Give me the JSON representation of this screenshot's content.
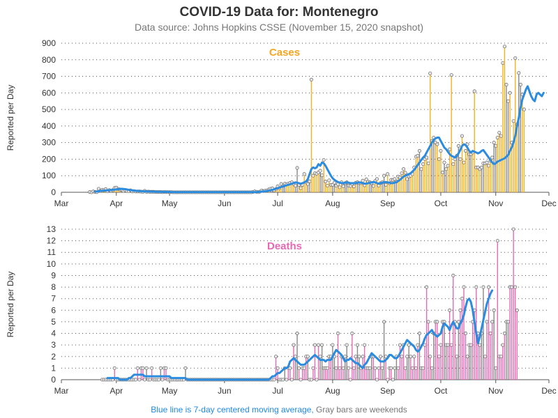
{
  "title": "COVID-19 Data for: Montenegro",
  "subtitle": "Data source: Johns Hopkins CSSE (November 15, 2020 snapshot)",
  "footnote": {
    "blue_text": "Blue line is 7-day centered moving average,",
    "gray_text": " Gray bars are weekends",
    "blue_color": "#1e88e5",
    "gray_color": "#777777"
  },
  "colors": {
    "cases_bar": "#f5b120",
    "deaths_bar": "#e56bb5",
    "weekend_bar": "#888888",
    "average_line": "#2b8cdf",
    "cases_label": "#f5a623",
    "deaths_label": "#e868b4"
  },
  "chart_data": [
    {
      "type": "bar",
      "panel": "cases",
      "label": "Cases",
      "ylabel": "Reported per Day",
      "ylim": [
        0,
        900
      ],
      "yticks": [
        0,
        100,
        200,
        300,
        400,
        500,
        600,
        700,
        800,
        900
      ],
      "xlim": [
        "2020-03-01",
        "2020-12-01"
      ],
      "xticks": [
        {
          "date": "2020-03-01",
          "label": "Mar"
        },
        {
          "date": "2020-04-01",
          "label": "Apr"
        },
        {
          "date": "2020-05-01",
          "label": "May"
        },
        {
          "date": "2020-06-01",
          "label": "Jun"
        },
        {
          "date": "2020-07-01",
          "label": "Jul"
        },
        {
          "date": "2020-08-01",
          "label": "Aug"
        },
        {
          "date": "2020-09-01",
          "label": "Sep"
        },
        {
          "date": "2020-10-01",
          "label": "Oct"
        },
        {
          "date": "2020-11-01",
          "label": "Nov"
        },
        {
          "date": "2020-12-01",
          "label": "Dec"
        }
      ],
      "grid": true,
      "series": [
        {
          "name": "Reported per Day",
          "start_date": "2020-03-17",
          "values": [
            2,
            0,
            5,
            2,
            1,
            21,
            8,
            14,
            13,
            19,
            6,
            13,
            9,
            13,
            26,
            28,
            20,
            17,
            14,
            8,
            12,
            8,
            7,
            12,
            5,
            7,
            5,
            5,
            5,
            4,
            3,
            8,
            3,
            4,
            3,
            3,
            3,
            2,
            2,
            2,
            2,
            1,
            2,
            1,
            1,
            1,
            1,
            0,
            0,
            0,
            0,
            0,
            0,
            0,
            0,
            0,
            0,
            0,
            0,
            0,
            0,
            0,
            0,
            0,
            0,
            0,
            0,
            0,
            0,
            0,
            0,
            0,
            0,
            0,
            0,
            0,
            0,
            0,
            0,
            0,
            0,
            0,
            0,
            0,
            0,
            0,
            0,
            0,
            0,
            0,
            0,
            0,
            2,
            5,
            3,
            1,
            4,
            11,
            7,
            10,
            11,
            17,
            21,
            24,
            11,
            19,
            36,
            25,
            50,
            38,
            52,
            48,
            52,
            56,
            60,
            50,
            40,
            147,
            44,
            25,
            45,
            110,
            60,
            50,
            66,
            680,
            100,
            115,
            112,
            120,
            130,
            103,
            195,
            65,
            40,
            72,
            45,
            45,
            58,
            40,
            49,
            30,
            60,
            37,
            55,
            60,
            40,
            38,
            50,
            35,
            57,
            60,
            55,
            55,
            70,
            42,
            78,
            63,
            60,
            55,
            38,
            68,
            80,
            40,
            55,
            60,
            100,
            45,
            110,
            55,
            75,
            75,
            80,
            65,
            95,
            90,
            115,
            140,
            118,
            80,
            95,
            100,
            110,
            150,
            215,
            220,
            250,
            140,
            170,
            200,
            210,
            175,
            718,
            310,
            330,
            300,
            290,
            200,
            250,
            120,
            180,
            140,
            160,
            260,
            708,
            170,
            200,
            220,
            280,
            200,
            340,
            180,
            250,
            290,
            230,
            230,
            240,
            610,
            150,
            150,
            140,
            150,
            175,
            175,
            180,
            160,
            190,
            210,
            300,
            280,
            330,
            360,
            340,
            780,
            880,
            650,
            550,
            600,
            300,
            430,
            810,
            410,
            720,
            650,
            590,
            500
          ]
        }
      ],
      "moving_average": {
        "name": "7-day centered moving average",
        "start_date": "2020-03-20",
        "values": [
          4,
          5,
          7,
          8,
          9,
          10,
          11,
          12,
          13,
          14,
          15,
          16,
          17,
          19,
          20,
          21,
          20,
          19,
          17,
          15,
          13,
          12,
          10,
          9,
          8,
          7,
          7,
          6,
          6,
          5,
          5,
          4,
          4,
          4,
          3,
          3,
          3,
          3,
          2,
          2,
          2,
          2,
          2,
          1,
          1,
          1,
          1,
          1,
          1,
          1,
          1,
          1,
          1,
          1,
          1,
          1,
          1,
          1,
          1,
          1,
          1,
          1,
          1,
          1,
          1,
          1,
          1,
          1,
          1,
          1,
          1,
          1,
          1,
          1,
          1,
          1,
          1,
          1,
          1,
          1,
          1,
          1,
          1,
          1,
          1,
          1,
          1,
          1,
          1,
          1,
          1,
          1,
          2,
          3,
          4,
          5,
          6,
          8,
          10,
          12,
          15,
          18,
          21,
          25,
          28,
          32,
          36,
          39,
          42,
          45,
          48,
          52,
          56,
          60,
          58,
          55,
          52,
          55,
          60,
          65,
          80,
          110,
          140,
          150,
          145,
          150,
          170,
          160,
          180,
          175,
          160,
          140,
          120,
          100,
          85,
          75,
          68,
          62,
          58,
          55,
          55,
          58,
          60,
          58,
          55,
          55,
          55,
          55,
          58,
          60,
          58,
          55,
          52,
          52,
          55,
          58,
          60,
          62,
          60,
          55,
          52,
          55,
          58,
          60,
          62,
          60,
          58,
          55,
          55,
          58,
          62,
          68,
          75,
          85,
          95,
          100,
          105,
          110,
          115,
          125,
          135,
          150,
          165,
          180,
          195,
          210,
          220,
          240,
          260,
          280,
          300,
          315,
          325,
          330,
          330,
          310,
          290,
          270,
          260,
          245,
          230,
          220,
          215,
          210,
          220,
          235,
          255,
          280,
          290,
          285,
          270,
          250,
          240,
          250,
          245,
          240,
          235,
          240,
          250,
          255,
          240,
          225,
          210,
          195,
          180,
          170,
          175,
          185,
          190,
          195,
          200,
          205,
          215,
          225,
          250,
          270,
          300,
          340,
          400,
          450,
          510,
          560,
          590,
          620,
          640,
          610,
          580,
          560,
          550,
          590,
          600,
          590,
          580,
          600
        ]
      }
    },
    {
      "type": "bar",
      "panel": "deaths",
      "label": "Deaths",
      "ylabel": "Reported per Day",
      "ylim": [
        0,
        13
      ],
      "yticks": [
        0,
        1,
        2,
        3,
        4,
        5,
        6,
        7,
        8,
        9,
        10,
        11,
        12,
        13
      ],
      "xlim": [
        "2020-03-01",
        "2020-12-01"
      ],
      "xticks": [
        {
          "date": "2020-03-01",
          "label": "Mar"
        },
        {
          "date": "2020-04-01",
          "label": "Apr"
        },
        {
          "date": "2020-05-01",
          "label": "May"
        },
        {
          "date": "2020-06-01",
          "label": "Jun"
        },
        {
          "date": "2020-07-01",
          "label": "Jul"
        },
        {
          "date": "2020-08-01",
          "label": "Aug"
        },
        {
          "date": "2020-09-01",
          "label": "Sep"
        },
        {
          "date": "2020-10-01",
          "label": "Oct"
        },
        {
          "date": "2020-11-01",
          "label": "Nov"
        },
        {
          "date": "2020-12-01",
          "label": "Dec"
        }
      ],
      "grid": true,
      "series": [
        {
          "name": "Reported per Day",
          "start_date": "2020-03-24",
          "values": [
            0,
            0,
            0,
            0,
            0,
            0,
            0,
            1,
            0,
            0,
            0,
            0,
            0,
            0,
            0,
            0,
            0,
            0,
            0,
            0,
            1,
            0,
            1,
            1,
            0,
            1,
            0,
            0,
            1,
            0,
            0,
            0,
            0,
            1,
            0,
            1,
            1,
            0,
            0,
            0,
            0,
            0,
            0,
            0,
            0,
            0,
            0,
            1,
            0,
            0,
            0,
            0,
            0,
            0,
            0,
            0,
            0,
            0,
            0,
            0,
            0,
            0,
            0,
            0,
            0,
            0,
            0,
            0,
            0,
            0,
            0,
            0,
            0,
            0,
            0,
            0,
            0,
            0,
            0,
            0,
            0,
            0,
            0,
            0,
            0,
            0,
            0,
            0,
            0,
            0,
            0,
            0,
            0,
            0,
            0,
            0,
            0,
            0,
            2,
            1,
            0,
            0,
            0,
            1,
            0,
            1,
            1,
            0,
            3,
            2,
            4,
            1,
            0,
            1,
            1,
            2,
            2,
            0,
            0,
            1,
            3,
            0,
            3,
            2,
            3,
            1,
            1,
            1,
            2,
            2,
            3,
            2,
            1,
            4,
            1,
            2,
            1,
            2,
            3,
            1,
            0,
            4,
            1,
            2,
            3,
            2,
            1,
            2,
            3,
            1,
            1,
            1,
            2,
            2,
            1,
            0,
            1,
            2,
            1,
            5,
            2,
            0,
            1,
            1,
            0,
            1,
            2,
            1,
            3,
            2,
            3,
            1,
            2,
            3,
            2,
            1,
            2,
            1,
            3,
            4,
            1,
            1,
            3,
            8,
            5,
            2,
            1,
            4,
            5,
            5,
            2,
            3,
            5,
            5,
            3,
            3,
            6,
            3,
            9,
            5,
            2,
            5,
            6,
            7,
            8,
            4,
            2,
            3,
            3,
            5,
            6,
            8,
            4,
            3,
            4,
            8,
            2,
            5,
            8,
            4,
            5,
            6,
            1,
            12,
            2,
            2,
            3,
            4,
            5,
            5,
            8,
            8,
            13,
            8,
            6
          ]
        }
      ],
      "moving_average": {
        "name": "7-day centered moving average",
        "start_date": "2020-03-27",
        "values": [
          0.14,
          0.14,
          0.14,
          0.14,
          0.14,
          0.14,
          0.14,
          0.0,
          0.0,
          0.0,
          0.0,
          0.0,
          0.14,
          0.14,
          0.29,
          0.43,
          0.43,
          0.43,
          0.43,
          0.43,
          0.43,
          0.29,
          0.29,
          0.29,
          0.29,
          0.29,
          0.29,
          0.29,
          0.29,
          0.29,
          0.29,
          0.29,
          0.29,
          0.29,
          0.29,
          0.29,
          0.14,
          0.14,
          0.14,
          0.14,
          0.14,
          0.14,
          0.14,
          0.14,
          0.14,
          0.0,
          0.0,
          0.0,
          0.0,
          0.0,
          0.0,
          0.0,
          0.0,
          0.0,
          0.0,
          0.0,
          0.0,
          0.0,
          0.0,
          0.0,
          0.0,
          0.0,
          0.0,
          0.0,
          0.0,
          0.0,
          0.0,
          0.0,
          0.0,
          0.0,
          0.0,
          0.0,
          0.0,
          0.0,
          0.0,
          0.0,
          0.0,
          0.0,
          0.0,
          0.0,
          0.0,
          0.0,
          0.0,
          0.0,
          0.0,
          0.0,
          0.0,
          0.0,
          0.0,
          0.0,
          0.0,
          0.0,
          0.14,
          0.29,
          0.29,
          0.43,
          0.57,
          0.57,
          0.71,
          0.86,
          1.0,
          1.0,
          1.14,
          1.57,
          1.71,
          1.86,
          1.71,
          1.57,
          1.43,
          1.29,
          1.29,
          1.29,
          1.43,
          1.57,
          1.71,
          1.86,
          2.0,
          2.14,
          2.0,
          1.86,
          1.71,
          1.71,
          1.71,
          1.57,
          1.71,
          1.71,
          1.71,
          2.0,
          2.29,
          2.57,
          2.43,
          2.29,
          2.14,
          1.86,
          1.57,
          1.71,
          1.71,
          1.86,
          1.71,
          1.57,
          1.43,
          1.43,
          1.29,
          1.14,
          1.0,
          1.29,
          1.43,
          1.71,
          2.0,
          2.29,
          2.14,
          2.0,
          1.86,
          1.71,
          1.57,
          1.57,
          1.57,
          1.71,
          1.86,
          2.14,
          2.14,
          2.0,
          1.86,
          1.86,
          2.0,
          2.29,
          2.57,
          2.86,
          3.14,
          3.43,
          3.29,
          3.14,
          3.0,
          2.86,
          2.57,
          2.43,
          2.57,
          2.86,
          3.14,
          3.57,
          3.86,
          4.0,
          4.14,
          4.29,
          4.0,
          3.86,
          3.71,
          3.86,
          4.0,
          4.57,
          4.86,
          4.71,
          4.57,
          4.29,
          4.71,
          5.0,
          4.71,
          4.43,
          4.43,
          4.86,
          5.14,
          5.57,
          6.29,
          6.86,
          7.0,
          6.71,
          6.0,
          5.0,
          4.0,
          3.14,
          3.71,
          4.43,
          5.14,
          5.86,
          6.57,
          7.0,
          7.43,
          7.71
        ]
      }
    }
  ]
}
